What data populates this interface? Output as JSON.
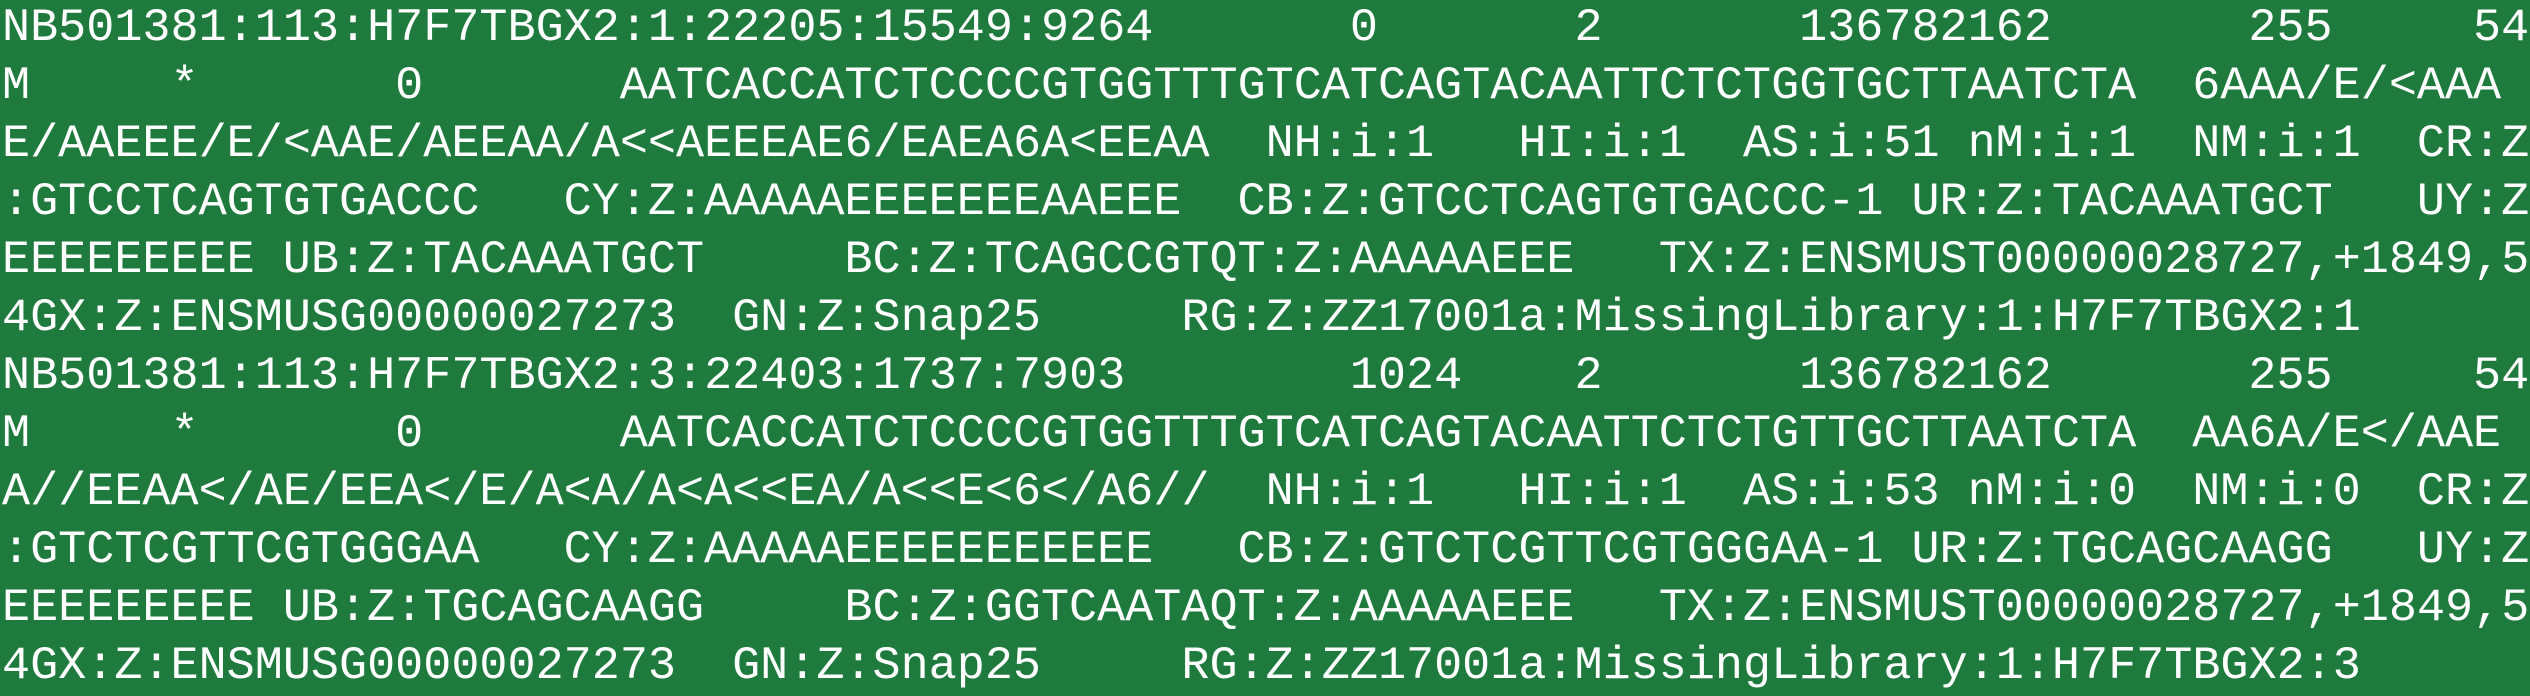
{
  "terminal": {
    "lines": [
      [
        "NB501381:113:H7F7TBGX2:1:22205:15549:9264",
        "0",
        "2",
        "136782162",
        "255",
        "54"
      ],
      [
        "M",
        "*",
        "0",
        "AATCACCATCTCCCCGTGGTTTGTCATCAGTACAATTCTCTGGTGCTTAATCTA",
        "6AAA/E/<AAA"
      ],
      [
        "E/AAEEE/E/<AAE/AEEAA/A<<AEEEAE6/EAEA6A<EEAA",
        "NH:i:1",
        "HI:i:1",
        "AS:i:51",
        "nM:i:1",
        "NM:i:1",
        "CR:Z"
      ],
      [
        ":GTCCTCAGTGTGACCC",
        "CY:Z:AAAAAEEEEEEEAAEEE",
        "CB:Z:GTCCTCAGTGTGACCC-1",
        "UR:Z:TACAAATGCT",
        "UY:Z:"
      ],
      [
        "EEEEEEEEE",
        "UB:Z:TACAAATGCT",
        "BC:Z:TCAGCCGT",
        "QT:Z:AAAAAEEE",
        "TX:Z:ENSMUST00000028727,+1849,5"
      ],
      [
        "4GX:Z:ENSMUSG00000027273",
        "GN:Z:Snap25",
        "RG:Z:ZZ17001a:MissingLibrary:1:H7F7TBGX2:1"
      ],
      [
        "NB501381:113:H7F7TBGX2:3:22403:1737:7903",
        "1024",
        "2",
        "136782162",
        "255",
        "54"
      ],
      [
        "M",
        "*",
        "0",
        "AATCACCATCTCCCCGTGGTTTGTCATCAGTACAATTCTCTGTTGCTTAATCTA",
        "AA6A/E</AAE"
      ],
      [
        "A//EEAA</AE/EEA</E/A<A/A<A<<EA/A<<E<6</A6//",
        "NH:i:1",
        "HI:i:1",
        "AS:i:53",
        "nM:i:0",
        "NM:i:0",
        "CR:Z"
      ],
      [
        ":GTCTCGTTCGTGGGAA",
        "CY:Z:AAAAAEEEEEEEEEEE",
        "CB:Z:GTCTCGTTCGTGGGAA-1",
        "UR:Z:TGCAGCAAGG",
        "UY:Z:"
      ],
      [
        "EEEEEEEEE",
        "UB:Z:TGCAGCAAGG",
        "BC:Z:GGTCAATA",
        "QT:Z:AAAAAEEE",
        "TX:Z:ENSMUST00000028727,+1849,5"
      ],
      [
        "4GX:Z:ENSMUSG00000027273",
        "GN:Z:Snap25",
        "RG:Z:ZZ17001a:MissingLibrary:1:H7F7TBGX2:3"
      ]
    ]
  }
}
